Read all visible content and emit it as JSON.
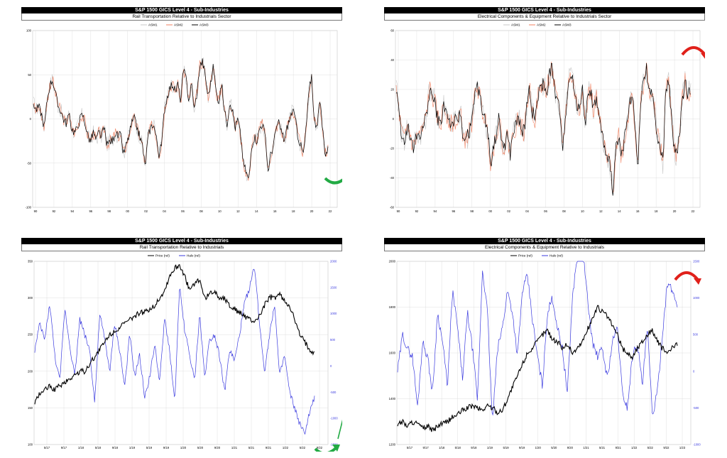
{
  "colors": {
    "asm1": "#c7c7c7",
    "asm2": "#f08060",
    "asm3": "#000000",
    "price": "#000000",
    "halo": "#3b3bdf",
    "grid": "#d8d8d8",
    "arrow_up": "#22aa44",
    "arrow_down": "#e0201a"
  },
  "panels": [
    {
      "header": "S&P 1500 GICS Level 4 - Sub-Industries",
      "subtitle": "Rail Transportation Relative to Industrials Sector",
      "legend": [
        "ASM1",
        "ASM2",
        "ASM3"
      ],
      "annotation": "green-up"
    },
    {
      "header": "S&P 1500 GICS Level 4 - Sub-Industries",
      "subtitle": "Electrical Components & Equipment Relative to Industrials Sector",
      "legend": [
        "ASM1",
        "ASM2",
        "ASM3"
      ],
      "annotation": "red-down"
    },
    {
      "header": "S&P 1500 GICS Level 4 - Sub-Industries",
      "subtitle": "Rail Transportation Relative to Industrials",
      "legend": [
        "Price (rel)",
        "Halo (rel)"
      ],
      "annotation": "green-up"
    },
    {
      "header": "S&P 1500 GICS Level 4 - Sub-Industries",
      "subtitle": "Electrical Components & Equipment Relative to Industrials",
      "legend": [
        "Price (rel)",
        "Halo (rel)"
      ],
      "annotation": "red-down"
    }
  ],
  "chart_data": [
    {
      "type": "line",
      "xticks": [
        "90",
        "92",
        "94",
        "96",
        "98",
        "00",
        "02",
        "04",
        "06",
        "08",
        "10",
        "12",
        "14",
        "16",
        "18",
        "20",
        "22"
      ],
      "yticks": [
        "100",
        "50",
        "0",
        "-50",
        "-100"
      ],
      "ylim": [
        -100,
        100
      ],
      "series": [
        {
          "name": "ASM1",
          "key": "asm1"
        },
        {
          "name": "ASM2",
          "key": "asm2"
        },
        {
          "name": "ASM3",
          "key": "asm3"
        }
      ],
      "values": [
        18,
        10,
        14,
        5,
        -10,
        20,
        38,
        45,
        30,
        15,
        10,
        0,
        -5,
        5,
        -10,
        -15,
        -12,
        0,
        5,
        -5,
        -20,
        -25,
        -15,
        -25,
        -15,
        -20,
        -10,
        -30,
        -25,
        -25,
        -15,
        -20,
        -18,
        -40,
        -30,
        -20,
        -5,
        0,
        -10,
        -20,
        -30,
        -55,
        -20,
        -10,
        -5,
        -20,
        -40,
        -30,
        10,
        25,
        35,
        40,
        30,
        40,
        20,
        55,
        45,
        20,
        40,
        10,
        30,
        60,
        65,
        50,
        25,
        40,
        60,
        30,
        20,
        40,
        10,
        -5,
        20,
        10,
        -10,
        0,
        -20,
        -50,
        -60,
        -70,
        -30,
        -20,
        -25,
        -10,
        -5,
        -20,
        -60,
        -40,
        -30,
        -10,
        -5,
        -15,
        -25,
        -10,
        0,
        10,
        0,
        -20,
        -30,
        -40,
        -10,
        30,
        50,
        -5,
        -5,
        20,
        -10,
        -40,
        -35
      ]
    },
    {
      "type": "line",
      "xticks": [
        "90",
        "92",
        "94",
        "96",
        "98",
        "00",
        "02",
        "04",
        "06",
        "08",
        "10",
        "12",
        "14",
        "16",
        "18",
        "20",
        "22"
      ],
      "yticks": [
        "60",
        "40",
        "20",
        "0",
        "-20",
        "-40",
        "-60"
      ],
      "ylim": [
        -60,
        60
      ],
      "series": [
        {
          "name": "ASM1",
          "key": "asm1"
        },
        {
          "name": "ASM2",
          "key": "asm2"
        },
        {
          "name": "ASM3",
          "key": "asm3"
        }
      ],
      "values": [
        20,
        5,
        -10,
        -15,
        -5,
        -10,
        -20,
        -15,
        -10,
        -10,
        -5,
        5,
        20,
        15,
        10,
        0,
        -5,
        10,
        5,
        0,
        -5,
        0,
        -5,
        5,
        -10,
        -15,
        -10,
        -5,
        10,
        25,
        15,
        5,
        0,
        -10,
        -30,
        -20,
        -10,
        0,
        -15,
        -20,
        -10,
        -25,
        -10,
        -5,
        0,
        -5,
        -10,
        10,
        20,
        5,
        0,
        15,
        20,
        25,
        15,
        30,
        35,
        20,
        10,
        5,
        -20,
        5,
        25,
        30,
        20,
        10,
        5,
        25,
        -5,
        15,
        20,
        5,
        15,
        0,
        -10,
        -20,
        -30,
        -30,
        -50,
        -20,
        -10,
        -25,
        -15,
        -5,
        10,
        20,
        -10,
        -30,
        10,
        25,
        35,
        20,
        15,
        5,
        -10,
        -20,
        -30,
        20,
        25,
        5,
        -20,
        -25,
        -10,
        15,
        25,
        15,
        20
      ]
    },
    {
      "type": "line",
      "xticks": [
        "5/17",
        "9/17",
        "1/18",
        "5/18",
        "9/18",
        "1/19",
        "5/19",
        "9/19",
        "1/20",
        "5/20",
        "9/20",
        "1/21",
        "5/21",
        "9/21",
        "1/22",
        "5/22",
        "9/22"
      ],
      "yticks_left": [
        "350",
        "300",
        "250",
        "200",
        "150",
        "100"
      ],
      "yticks_right": [
        "2000",
        "1500",
        "1000",
        "500",
        "0",
        "-500",
        "-1000",
        "-1500"
      ],
      "ylim_left": [
        100,
        350
      ],
      "ylim_right": [
        -1500,
        2000
      ],
      "series": [
        {
          "name": "Price (rel)",
          "axis": "left",
          "key": "price",
          "values": [
            155,
            170,
            175,
            180,
            175,
            180,
            185,
            190,
            195,
            200,
            200,
            210,
            220,
            230,
            240,
            250,
            255,
            260,
            265,
            270,
            275,
            280,
            280,
            285,
            290,
            300,
            310,
            330,
            340,
            345,
            330,
            310,
            320,
            325,
            300,
            305,
            310,
            300,
            300,
            290,
            285,
            280,
            275,
            270,
            268,
            275,
            290,
            300,
            300,
            305,
            295,
            290,
            270,
            250,
            240,
            230,
            225
          ]
        },
        {
          "name": "Halo (rel)",
          "axis": "right",
          "key": "halo",
          "values": [
            300,
            800,
            500,
            1200,
            200,
            -300,
            1100,
            400,
            -200,
            900,
            600,
            300,
            -700,
            1000,
            500,
            -100,
            800,
            300,
            -400,
            600,
            -200,
            200,
            -600,
            -200,
            400,
            -300,
            900,
            300,
            -700,
            1500,
            700,
            200,
            -300,
            1000,
            -200,
            500,
            600,
            200,
            -500,
            300,
            100,
            600,
            1200,
            1500,
            1900,
            800,
            -100,
            600,
            1200,
            -200,
            200,
            -500,
            -800,
            -1100,
            -1300,
            -900,
            -600
          ]
        }
      ]
    },
    {
      "type": "line",
      "xticks": [
        "5/17",
        "9/17",
        "1/18",
        "5/18",
        "9/18",
        "1/19",
        "5/19",
        "9/19",
        "1/20",
        "5/20",
        "9/20",
        "1/21",
        "5/21",
        "9/21",
        "1/22",
        "5/22",
        "9/22",
        "1/23"
      ],
      "yticks_left": [
        "2000",
        "1800",
        "1600",
        "1400",
        "1200"
      ],
      "yticks_right": [
        "1500",
        "1000",
        "500",
        "0",
        "-500",
        "-1000"
      ],
      "ylim_left": [
        1200,
        2000
      ],
      "ylim_right": [
        -1000,
        1500
      ],
      "series": [
        {
          "name": "Price (rel)",
          "axis": "left",
          "key": "price",
          "values": [
            1290,
            1300,
            1280,
            1300,
            1290,
            1270,
            1280,
            1260,
            1280,
            1290,
            1300,
            1320,
            1330,
            1350,
            1360,
            1370,
            1360,
            1350,
            1370,
            1360,
            1340,
            1350,
            1400,
            1450,
            1500,
            1550,
            1600,
            1620,
            1650,
            1680,
            1700,
            1660,
            1650,
            1620,
            1640,
            1600,
            1620,
            1650,
            1700,
            1750,
            1800,
            1780,
            1760,
            1720,
            1680,
            1620,
            1600,
            1580,
            1620,
            1650,
            1680,
            1700,
            1650,
            1620,
            1600,
            1620,
            1640
          ]
        },
        {
          "name": "Halo (rel)",
          "axis": "right",
          "key": "halo",
          "values": [
            0,
            500,
            300,
            200,
            -500,
            400,
            200,
            -300,
            800,
            400,
            -200,
            1100,
            600,
            -100,
            800,
            300,
            -400,
            1400,
            800,
            -700,
            300,
            600,
            1100,
            800,
            200,
            1100,
            1300,
            700,
            200,
            -200,
            800,
            1000,
            600,
            300,
            -300,
            1000,
            1600,
            1700,
            1000,
            400,
            200,
            300,
            -100,
            400,
            600,
            -300,
            -500,
            200,
            400,
            -200,
            600,
            -600,
            -300,
            500,
            1200,
            1100,
            900
          ]
        }
      ]
    }
  ]
}
